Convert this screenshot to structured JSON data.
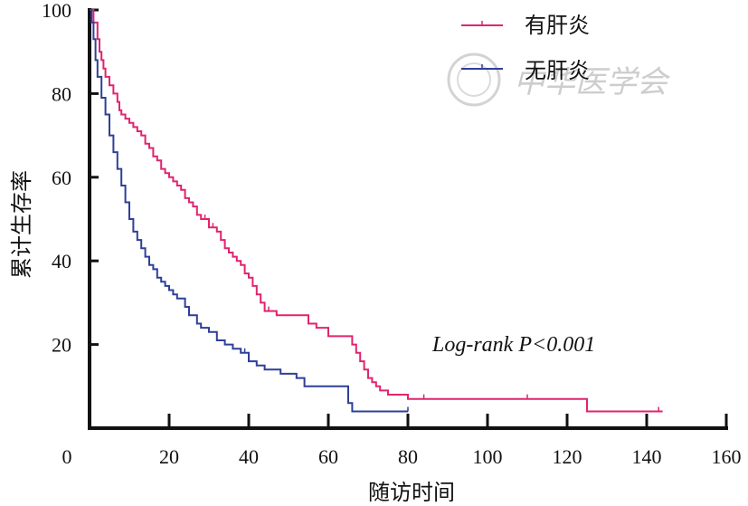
{
  "chart_data": {
    "type": "line",
    "subtype": "kaplan-meier",
    "title": "",
    "xlabel": "随访时间",
    "ylabel": "累计生存率",
    "xlim": [
      0,
      160
    ],
    "ylim": [
      0,
      100
    ],
    "xticks": [
      0,
      20,
      40,
      60,
      80,
      100,
      120,
      140,
      160
    ],
    "yticks": [
      20,
      40,
      60,
      80,
      100
    ],
    "y_tick_labels": [
      "20",
      "40",
      "60",
      "80",
      "100"
    ],
    "x_tick_labels": [
      "0",
      "20",
      "40",
      "60",
      "80",
      "100",
      "120",
      "140",
      "160"
    ],
    "legend_position": "top-right",
    "annotation": "Log-rank P<0.001",
    "watermark": "中华医学会",
    "series": [
      {
        "name": "有肝炎",
        "color": "#e0246e",
        "x": [
          0,
          1,
          2,
          2.5,
          3,
          3.5,
          4,
          5,
          6,
          7,
          7.5,
          8,
          9,
          10,
          11,
          12,
          13,
          14,
          15,
          16,
          17,
          18,
          19,
          20,
          21,
          22,
          23,
          24,
          25,
          26,
          27,
          28,
          30,
          32,
          33,
          34,
          35,
          36,
          37,
          38,
          39,
          40,
          41,
          42,
          43,
          44,
          45,
          46,
          47,
          48,
          50,
          52,
          54,
          55,
          56,
          57,
          60,
          62,
          64,
          65,
          66,
          67,
          68,
          69,
          70,
          71,
          72,
          73,
          75,
          80,
          90,
          100,
          110,
          120,
          125,
          130,
          140,
          144
        ],
        "y": [
          100,
          97,
          93,
          90,
          88,
          86,
          84,
          82,
          80,
          78,
          76,
          75,
          74,
          73,
          72,
          71,
          70,
          68,
          67,
          65,
          64,
          62,
          61,
          60,
          59,
          58,
          57,
          55,
          54,
          53,
          51,
          50,
          48,
          47,
          45,
          43,
          42,
          41,
          40,
          39,
          37,
          36,
          34,
          32,
          30,
          28,
          28,
          28,
          27,
          27,
          27,
          27,
          27,
          25,
          25,
          24,
          22,
          22,
          22,
          22,
          20,
          18,
          16,
          14,
          12,
          11,
          10,
          9,
          8,
          7,
          7,
          7,
          7,
          7,
          4,
          4,
          4,
          4
        ],
        "censor_x": [
          3,
          10,
          20,
          24,
          29,
          31,
          40,
          43,
          45,
          47,
          84,
          110,
          143
        ]
      },
      {
        "name": "无肝炎",
        "color": "#2f3f98",
        "x": [
          0,
          0.5,
          1,
          1.5,
          2,
          3,
          4,
          5,
          6,
          7,
          8,
          9,
          10,
          11,
          12,
          13,
          14,
          15,
          16,
          17,
          18,
          19,
          20,
          21,
          22,
          24,
          25,
          27,
          28,
          30,
          32,
          34,
          36,
          38,
          40,
          42,
          44,
          48,
          50,
          52,
          54,
          56,
          58,
          60,
          62,
          64,
          65,
          66,
          70,
          75,
          80
        ],
        "y": [
          100,
          97,
          93,
          88,
          84,
          79,
          75,
          70,
          66,
          62,
          58,
          54,
          50,
          47,
          45,
          43,
          41,
          39,
          38,
          36,
          35,
          34,
          33,
          32,
          31,
          29,
          27,
          25,
          24,
          23,
          21,
          20,
          19,
          18,
          16,
          15,
          14,
          13,
          13,
          12,
          10,
          10,
          10,
          10,
          10,
          10,
          6,
          4,
          4,
          4,
          4
        ],
        "censor_x": [
          28,
          39,
          52,
          80
        ]
      }
    ]
  }
}
